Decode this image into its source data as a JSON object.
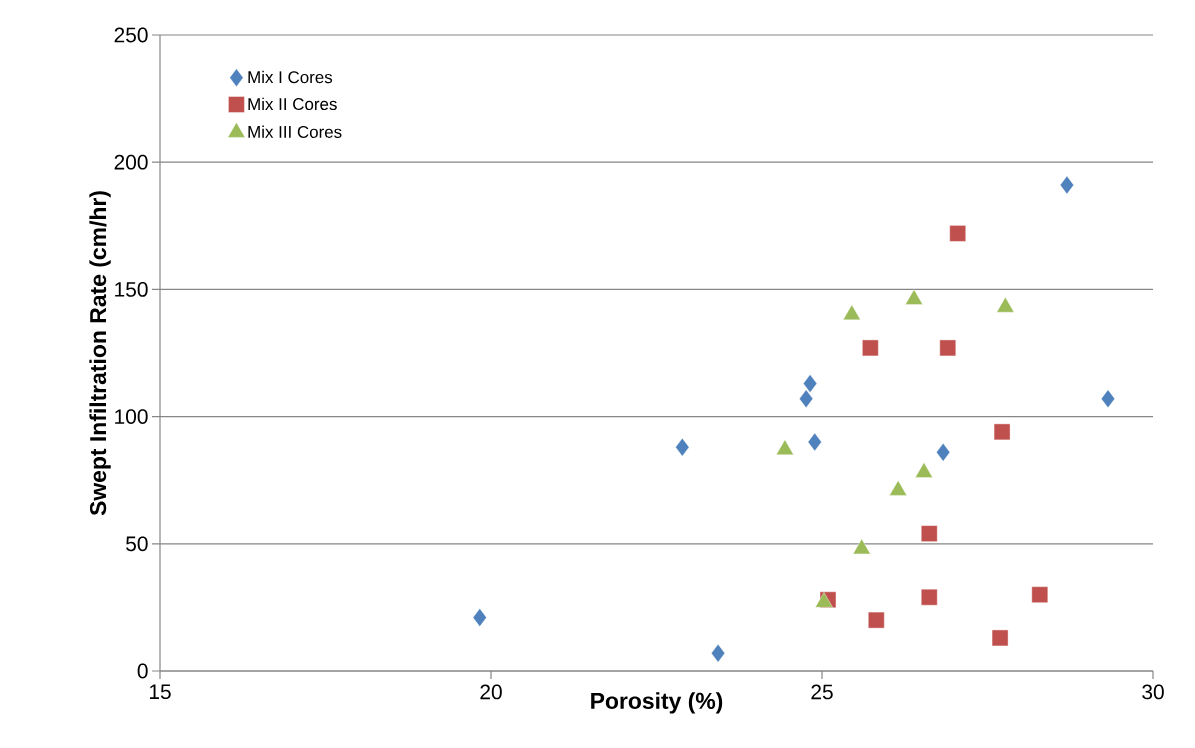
{
  "chart_data": {
    "type": "scatter",
    "xlabel": "Porosity (%)",
    "ylabel": "Swept Infiltration Rate (cm/hr)",
    "xlim": [
      15,
      30
    ],
    "xticks": [
      15,
      20,
      25,
      30
    ],
    "ylim": [
      0,
      250
    ],
    "yticks": [
      0,
      50,
      100,
      150,
      200,
      250
    ],
    "grid": "y",
    "legend": "top left",
    "series": [
      {
        "name": "Mix I Cores",
        "color": "#4f81bd",
        "marker": "diamond",
        "x": [
          19.83,
          22.89,
          23.43,
          24.82,
          24.76,
          24.89,
          26.83,
          28.7,
          29.32
        ],
        "values": [
          21,
          88,
          7,
          113,
          107,
          90,
          86,
          191,
          107
        ]
      },
      {
        "name": "Mix II Cores",
        "color": "#c0504d",
        "marker": "square",
        "x": [
          27.05,
          25.73,
          26.9,
          27.72,
          26.62,
          25.09,
          25.82,
          26.62,
          28.29,
          27.69
        ],
        "values": [
          172,
          127,
          127,
          94,
          54,
          28,
          20,
          29,
          30,
          13
        ]
      },
      {
        "name": "Mix III Cores",
        "color": "#9bbb59",
        "marker": "triangle",
        "x": [
          26.39,
          25.45,
          27.77,
          24.44,
          26.54,
          26.15,
          25.6,
          25.03
        ],
        "values": [
          146,
          140,
          143,
          87,
          78,
          71,
          48,
          27
        ]
      }
    ]
  }
}
